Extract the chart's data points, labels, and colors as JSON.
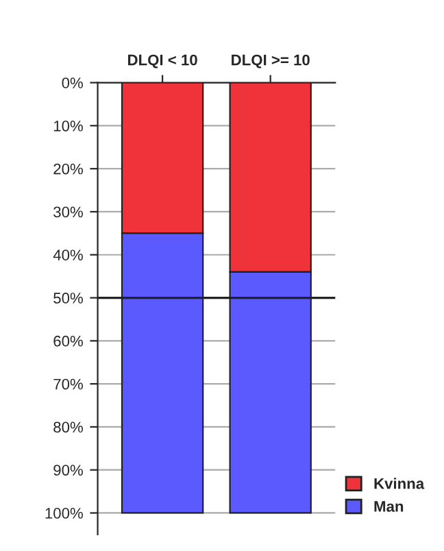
{
  "chart_data": {
    "type": "bar",
    "stacked": true,
    "categories": [
      "DLQI < 10",
      "DLQI >= 10"
    ],
    "series": [
      {
        "name": "Kvinna",
        "color": "#f0323a",
        "values": [
          35,
          44
        ]
      },
      {
        "name": "Man",
        "color": "#5a5aff",
        "values": [
          65,
          56
        ]
      }
    ],
    "ylim": [
      105,
      0
    ],
    "yticks": [
      {
        "value": 0,
        "label": "0%"
      },
      {
        "value": 10,
        "label": "10%"
      },
      {
        "value": 20,
        "label": "20%"
      },
      {
        "value": 30,
        "label": "30%"
      },
      {
        "value": 40,
        "label": "40%"
      },
      {
        "value": 50,
        "label": "50%"
      },
      {
        "value": 60,
        "label": "60%"
      },
      {
        "value": 70,
        "label": "70%"
      },
      {
        "value": 80,
        "label": "80%"
      },
      {
        "value": 90,
        "label": "90%"
      },
      {
        "value": 100,
        "label": "100%"
      }
    ],
    "ref_lines": [
      {
        "axis": "y",
        "value": 50,
        "color": "#222222",
        "line_style": "solid"
      }
    ],
    "grid": "y",
    "legend": "bottom right"
  }
}
